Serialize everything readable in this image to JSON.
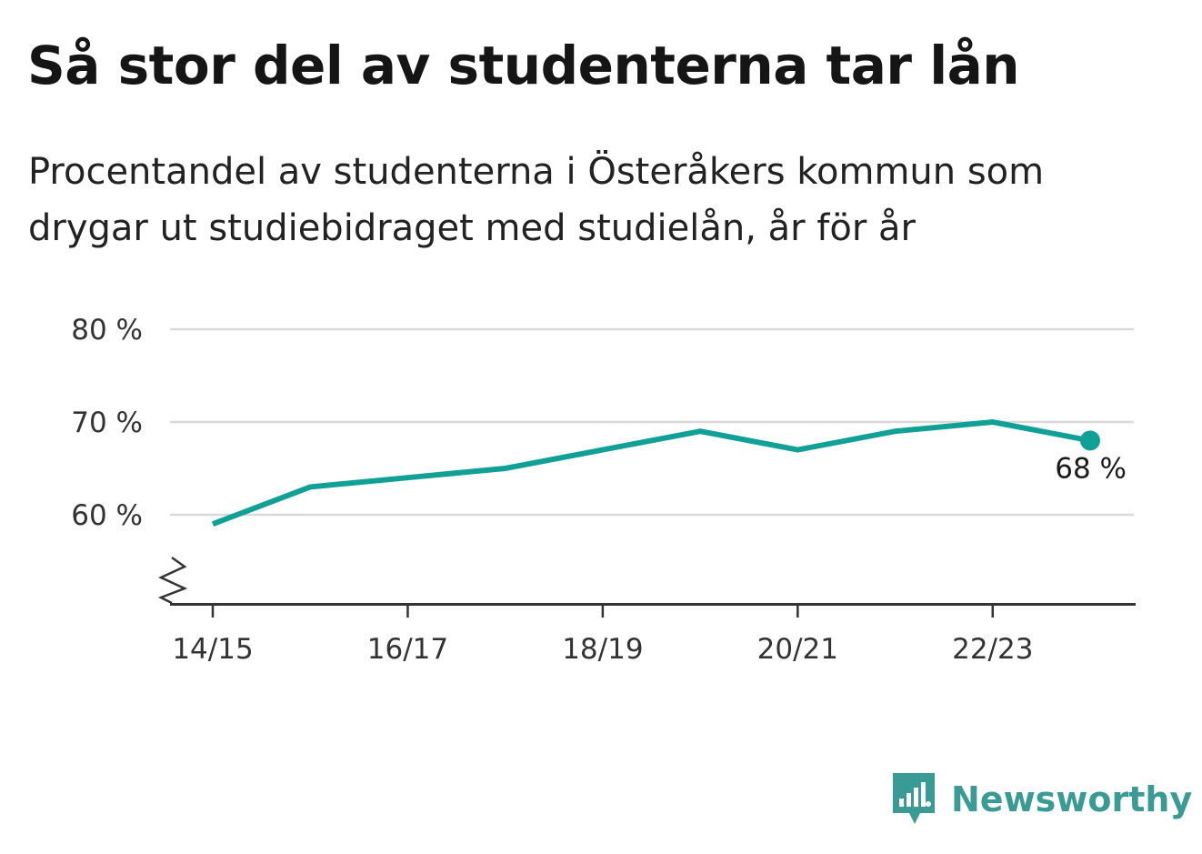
{
  "title": "Så stor del av studenterna tar lån",
  "subtitle": "Procentandel av studenterna i Österåkers kommun som drygar ut studiebidraget med studielån, år för år",
  "brand": {
    "name": "Newsworthy",
    "icon": "newsworthy-logo-icon",
    "color": "#3a9a94"
  },
  "chart_data": {
    "type": "line",
    "x": [
      "14/15",
      "15/16",
      "16/17",
      "17/18",
      "18/19",
      "19/20",
      "20/21",
      "21/22",
      "22/23",
      "23/24"
    ],
    "series": [
      {
        "values": [
          59,
          63,
          64,
          65,
          67,
          69,
          67,
          69,
          70,
          68
        ],
        "color": "#11a096"
      }
    ],
    "x_tick_labels": [
      "14/15",
      "16/17",
      "18/19",
      "20/21",
      "22/23"
    ],
    "y_ticks": [
      {
        "value": 60,
        "label": "60 %"
      },
      {
        "value": 70,
        "label": "70 %"
      },
      {
        "value": 80,
        "label": "80 %"
      }
    ],
    "ylim": [
      50,
      80
    ],
    "y_axis_broken": true,
    "grid": true,
    "end_label": "68 %",
    "xlabel": "",
    "ylabel": ""
  }
}
